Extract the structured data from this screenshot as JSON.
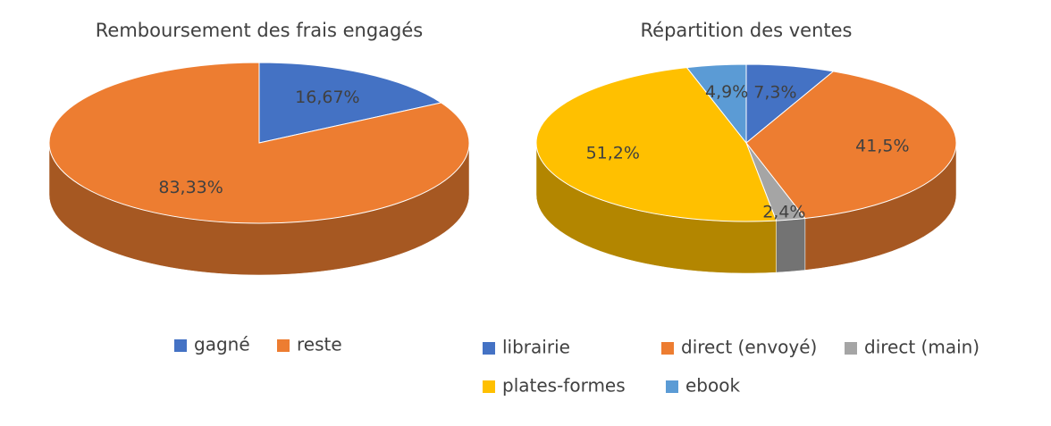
{
  "chart_data": [
    {
      "type": "pie",
      "title": "Remboursement des frais engagés",
      "categories": [
        "gagné",
        "reste"
      ],
      "values": [
        16.67,
        83.33
      ],
      "value_labels": [
        "16,67%",
        "83,33%"
      ],
      "colors": [
        "#4472c4",
        "#ed7d31"
      ],
      "legend": "bottom"
    },
    {
      "type": "pie",
      "title": "Répartition des ventes",
      "categories": [
        "librairie",
        "direct (envoyé)",
        "direct (main)",
        "plates-formes",
        "ebook"
      ],
      "values": [
        7.3,
        41.5,
        2.4,
        51.2,
        4.9
      ],
      "value_labels": [
        "7,3%",
        "41,5%",
        "2,4%",
        "51,2%",
        "4,9%"
      ],
      "colors": [
        "#4472c4",
        "#ed7d31",
        "#a5a5a5",
        "#ffc000",
        "#5b9bd5"
      ],
      "legend": "bottom"
    }
  ]
}
